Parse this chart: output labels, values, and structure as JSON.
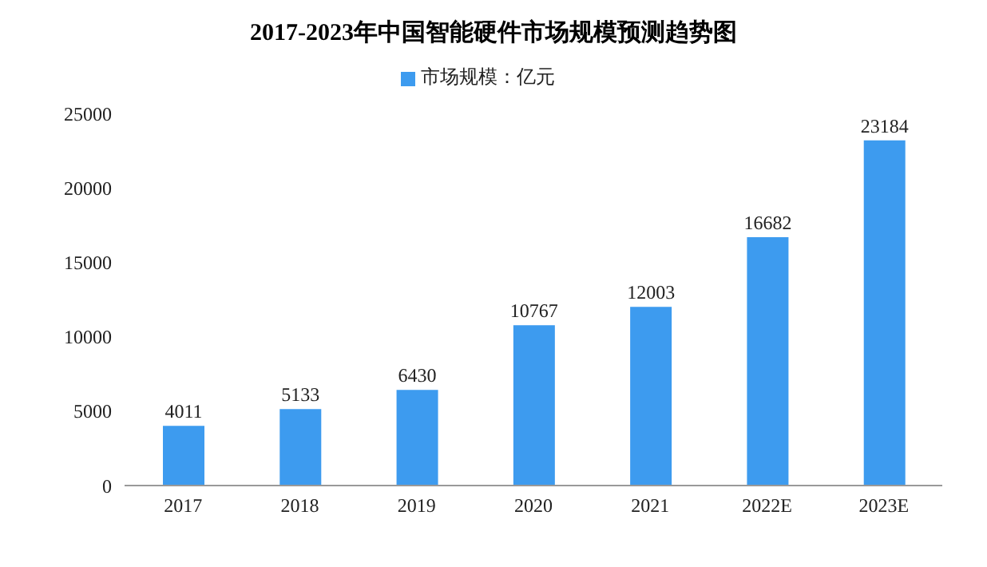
{
  "chart_data": {
    "type": "bar",
    "title": "2017-2023年中国智能硬件市场规模预测趋势图",
    "categories": [
      "2017",
      "2018",
      "2019",
      "2020",
      "2021",
      "2022E",
      "2023E"
    ],
    "series": [
      {
        "name": "市场规模：亿元",
        "color": "#3d9bef",
        "values": [
          4011,
          5133,
          6430,
          10767,
          12003,
          16682,
          23184
        ]
      }
    ],
    "ylim": [
      0,
      25000
    ],
    "yticks": [
      0,
      5000,
      10000,
      15000,
      20000,
      25000
    ],
    "legend": "top",
    "data_labels": true
  }
}
